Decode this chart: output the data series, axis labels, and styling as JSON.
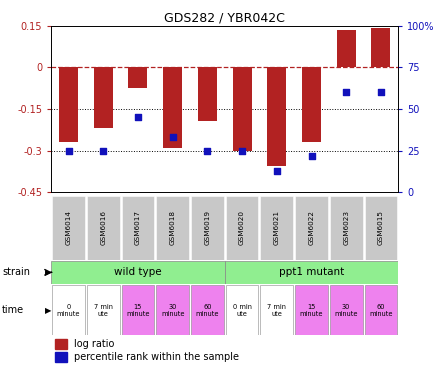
{
  "title": "GDS282 / YBR042C",
  "samples": [
    "GSM6014",
    "GSM6016",
    "GSM6017",
    "GSM6018",
    "GSM6019",
    "GSM6020",
    "GSM6021",
    "GSM6022",
    "GSM6023",
    "GSM6015"
  ],
  "log_ratio": [
    -0.27,
    -0.22,
    -0.075,
    -0.29,
    -0.195,
    -0.3,
    -0.355,
    -0.27,
    0.135,
    0.14
  ],
  "percentile": [
    25,
    25,
    45,
    33,
    25,
    25,
    13,
    22,
    60,
    60
  ],
  "ylim_left": [
    -0.45,
    0.15
  ],
  "ylim_right": [
    0,
    100
  ],
  "yticks_left": [
    -0.45,
    -0.3,
    -0.15,
    0.0,
    0.15
  ],
  "yticks_right": [
    0,
    25,
    50,
    75,
    100
  ],
  "ytick_labels_left": [
    "-0.45",
    "-0.3",
    "-0.15",
    "0",
    "0.15"
  ],
  "ytick_labels_right": [
    "0",
    "25",
    "50",
    "75",
    "100%"
  ],
  "bar_color": "#B22222",
  "dot_color": "#1111BB",
  "wild_type_color": "#90EE90",
  "ppt1_color": "#90EE90",
  "gsm_label_bg": "#C8C8C8",
  "time_colors_white": "#FFFFFF",
  "time_colors_pink": "#EE82EE",
  "legend_log_ratio": "log ratio",
  "legend_percentile": "percentile rank within the sample"
}
